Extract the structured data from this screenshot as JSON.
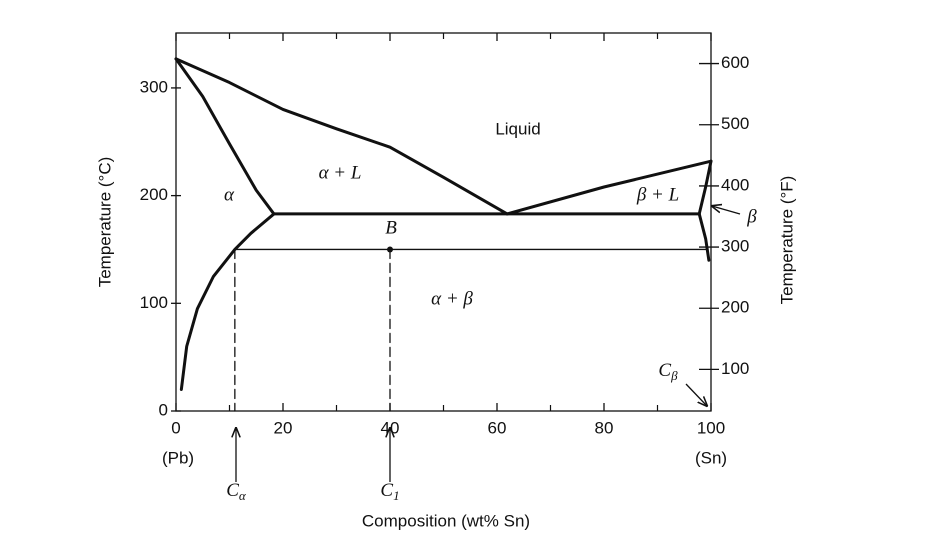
{
  "chart_data": {
    "type": "line",
    "xlabel": "Composition (wt% Sn)",
    "ylabel": "Temperature (°C)",
    "y2label": "Temperature (°F)",
    "xlim": [
      0,
      100
    ],
    "ylim": [
      0,
      351
    ],
    "y2lim": [
      32,
      650
    ],
    "xticks": [
      0,
      20,
      40,
      60,
      80,
      100
    ],
    "xminorticks": [
      10,
      30,
      50,
      70,
      90
    ],
    "yticks": [
      0,
      100,
      200,
      300
    ],
    "y2ticks": [
      100,
      200,
      300,
      400,
      500,
      600
    ],
    "color": "#111111",
    "series": [
      {
        "x": [
          0,
          10,
          20,
          30,
          40,
          50,
          61.9
        ],
        "values": [
          327,
          305,
          280,
          262,
          245,
          217,
          183
        ],
        "line_width": 3
      },
      {
        "x": [
          61.9,
          80,
          100
        ],
        "values": [
          183,
          208,
          232
        ],
        "line_width": 3
      },
      {
        "x": [
          0,
          5,
          10,
          15,
          18.3
        ],
        "values": [
          327,
          292,
          248,
          205,
          183
        ],
        "line_width": 3
      },
      {
        "x": [
          18.3,
          97.8
        ],
        "values": [
          183,
          183
        ],
        "line_width": 3
      },
      {
        "x": [
          18.3,
          14,
          11,
          7,
          4,
          2,
          1
        ],
        "values": [
          183,
          165,
          150,
          125,
          95,
          60,
          20
        ],
        "line_width": 3
      },
      {
        "x": [
          97.8,
          99,
          100
        ],
        "values": [
          183,
          208,
          232
        ],
        "line_width": 3
      },
      {
        "x": [
          97.8,
          99,
          99.6
        ],
        "values": [
          183,
          160,
          140
        ],
        "line_width": 3
      },
      {
        "x": [
          11,
          99.3
        ],
        "values": [
          150,
          150
        ],
        "line_width": 1.3
      },
      {
        "x": [
          11,
          11
        ],
        "values": [
          150,
          0
        ],
        "line_width": 1.3,
        "dash": true
      },
      {
        "x": [
          40,
          40
        ],
        "values": [
          150,
          0
        ],
        "line_width": 1.3,
        "dash": true
      },
      {
        "x": [
          40
        ],
        "values": [
          150
        ],
        "marker": true
      }
    ],
    "annotations": [
      "Liquid",
      "α + L",
      "α",
      "β + L",
      "B",
      "α + β",
      "(Pb)",
      "(Sn)",
      "β"
    ],
    "composition_labels": [
      {
        "text": "C",
        "sub": "α"
      },
      {
        "text": "C",
        "sub": "1"
      },
      {
        "text": "C",
        "sub": "β"
      }
    ]
  }
}
